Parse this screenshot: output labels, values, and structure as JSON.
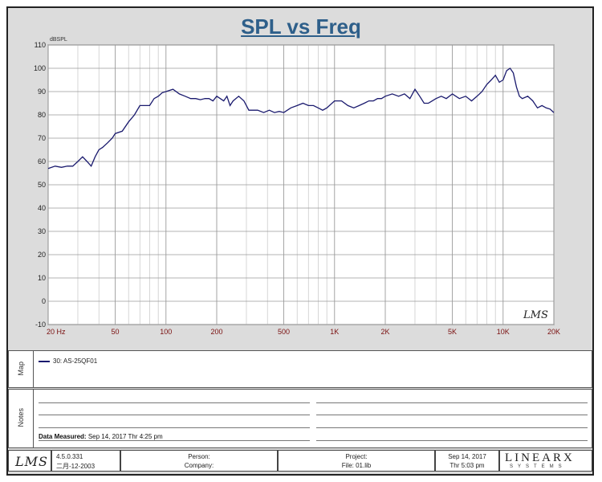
{
  "chart_data": {
    "type": "line",
    "title": "SPL vs Freq",
    "ylabel": "dBSPL",
    "xlabel": "",
    "xscale": "log",
    "xlim": [
      20,
      20000
    ],
    "ylim": [
      -10,
      110
    ],
    "yticks": [
      -10,
      0,
      10,
      20,
      30,
      40,
      50,
      60,
      70,
      80,
      90,
      100,
      110
    ],
    "xticks": [
      {
        "value": 20,
        "label": "20 Hz"
      },
      {
        "value": 50,
        "label": "50"
      },
      {
        "value": 100,
        "label": "100"
      },
      {
        "value": 200,
        "label": "200"
      },
      {
        "value": 500,
        "label": "500"
      },
      {
        "value": 1000,
        "label": "1K"
      },
      {
        "value": 2000,
        "label": "2K"
      },
      {
        "value": 5000,
        "label": "5K"
      },
      {
        "value": 10000,
        "label": "10K"
      },
      {
        "value": 20000,
        "label": "20K"
      }
    ],
    "grid": true,
    "series": [
      {
        "name": "30: AS-25QF01",
        "color": "#1a1a6e",
        "x": [
          20,
          22,
          24,
          26,
          28,
          30,
          32,
          34,
          36,
          38,
          40,
          42,
          45,
          48,
          50,
          55,
          60,
          65,
          70,
          75,
          80,
          85,
          90,
          95,
          100,
          110,
          120,
          130,
          140,
          150,
          160,
          170,
          180,
          190,
          200,
          210,
          220,
          230,
          240,
          250,
          270,
          290,
          310,
          330,
          350,
          380,
          410,
          440,
          470,
          500,
          550,
          600,
          650,
          700,
          750,
          800,
          850,
          900,
          1000,
          1100,
          1200,
          1300,
          1400,
          1500,
          1600,
          1700,
          1800,
          1900,
          2000,
          2200,
          2400,
          2600,
          2800,
          3000,
          3200,
          3400,
          3600,
          3800,
          4000,
          4300,
          4600,
          5000,
          5500,
          6000,
          6500,
          7000,
          7500,
          8000,
          8500,
          9000,
          9500,
          10000,
          10500,
          11000,
          11500,
          12000,
          12500,
          13000,
          14000,
          15000,
          16000,
          17000,
          18000,
          19000,
          20000
        ],
        "y": [
          57,
          58,
          57.5,
          58,
          58,
          60,
          62,
          60,
          58,
          62,
          65,
          66,
          68,
          70,
          72,
          73,
          77,
          80,
          84,
          84,
          84,
          87,
          88,
          89.5,
          90,
          91,
          89,
          88,
          87,
          87,
          86.5,
          87,
          87,
          86,
          88,
          87,
          86,
          88,
          84,
          86,
          88,
          86,
          82,
          82,
          82,
          81,
          82,
          81,
          81.5,
          81,
          83,
          84,
          85,
          84,
          84,
          83,
          82,
          83,
          86,
          86,
          84,
          83,
          84,
          85,
          86,
          86,
          87,
          87,
          88,
          89,
          88,
          89,
          87,
          91,
          88,
          85,
          85,
          86,
          87,
          88,
          87,
          89,
          87,
          88,
          86,
          88,
          90,
          93,
          95,
          97,
          94,
          95,
          99,
          100,
          98,
          92,
          88,
          87,
          88,
          86,
          83,
          84,
          83,
          82.5,
          81
        ]
      }
    ]
  },
  "map": {
    "label": "Map"
  },
  "notes": {
    "label": "Notes",
    "data_measured_label": "Data Measured:",
    "data_measured_value": "Sep 14, 2017  Thr  4:25 pm"
  },
  "watermark": {
    "text": "LMS"
  },
  "footer": {
    "logo": "LMS",
    "version": "4.5.0.331",
    "build_date": "二月-12-2003",
    "person_label": "Person:",
    "company_label": "Company:",
    "project_label": "Project:",
    "file_label": "File: 01.lib",
    "date": "Sep 14, 2017",
    "time": "Thr  5:03 pm",
    "brand": "LINEARX",
    "brand_sub": "SYSTEMS"
  }
}
